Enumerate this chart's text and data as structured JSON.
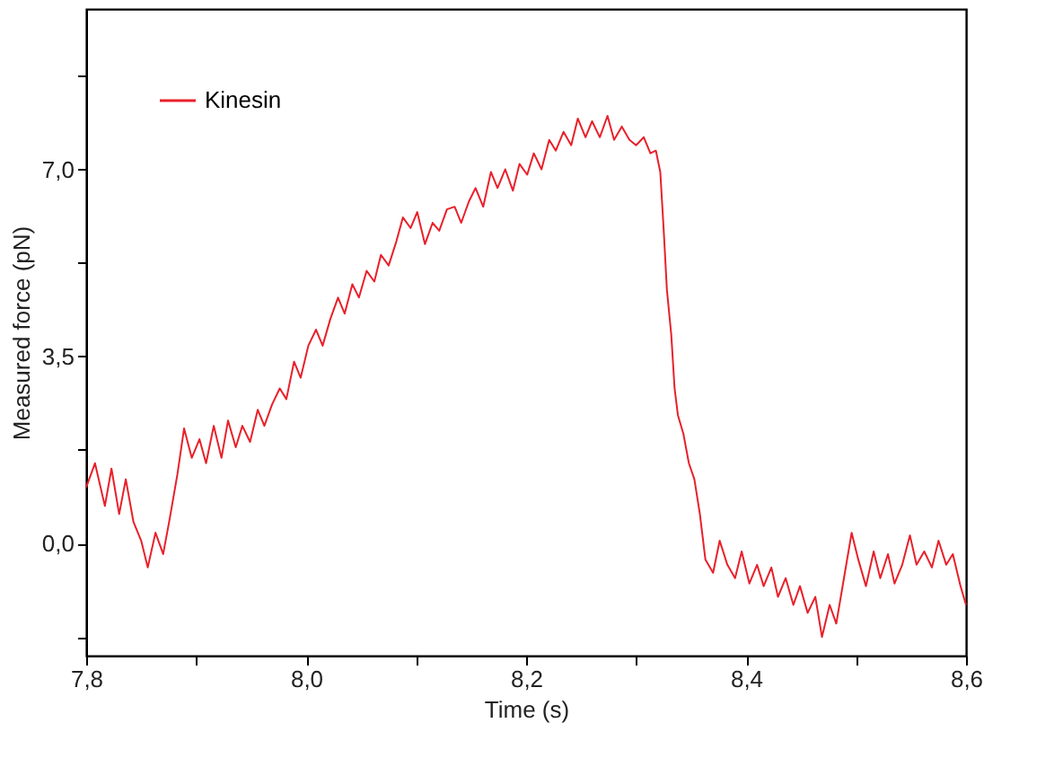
{
  "chart_data": {
    "type": "line",
    "xlabel": "Time (s)",
    "ylabel": "Measured force (pN)",
    "xlim": [
      7.8,
      8.6
    ],
    "ylim": [
      -2.1,
      10.0
    ],
    "xticks": [
      {
        "value": 7.8,
        "label": "7,8"
      },
      {
        "value": 7.9,
        "label": null
      },
      {
        "value": 8.0,
        "label": "8,0"
      },
      {
        "value": 8.1,
        "label": null
      },
      {
        "value": 8.2,
        "label": "8,2"
      },
      {
        "value": 8.3,
        "label": null
      },
      {
        "value": 8.4,
        "label": "8,4"
      },
      {
        "value": 8.5,
        "label": null
      },
      {
        "value": 8.6,
        "label": "8,6"
      }
    ],
    "yticks": [
      {
        "value": -1.75,
        "label": null
      },
      {
        "value": 0.0,
        "label": "0,0"
      },
      {
        "value": 1.75,
        "label": null
      },
      {
        "value": 3.5,
        "label": "3,5"
      },
      {
        "value": 5.25,
        "label": null
      },
      {
        "value": 7.0,
        "label": "7,0"
      },
      {
        "value": 8.75,
        "label": null
      }
    ],
    "grid": false,
    "legend": "top left",
    "marker": "none",
    "line_style": "solid",
    "series": [
      {
        "name": "Kinesin",
        "color": "#e8202a",
        "x": [
          7.8,
          7.808,
          7.817,
          7.823,
          7.83,
          7.836,
          7.843,
          7.85,
          7.856,
          7.863,
          7.87,
          7.876,
          7.883,
          7.889,
          7.896,
          7.903,
          7.909,
          7.916,
          7.923,
          7.929,
          7.936,
          7.942,
          7.949,
          7.956,
          7.962,
          7.969,
          7.976,
          7.982,
          7.989,
          7.995,
          8.002,
          8.009,
          8.015,
          8.022,
          8.029,
          8.035,
          8.042,
          8.048,
          8.055,
          8.062,
          8.068,
          8.075,
          8.082,
          8.088,
          8.095,
          8.101,
          8.108,
          8.115,
          8.121,
          8.128,
          8.135,
          8.141,
          8.148,
          8.154,
          8.161,
          8.168,
          8.174,
          8.181,
          8.188,
          8.194,
          8.201,
          8.207,
          8.214,
          8.221,
          8.227,
          8.234,
          8.241,
          8.247,
          8.254,
          8.26,
          8.267,
          8.274,
          8.28,
          8.287,
          8.294,
          8.3,
          8.307,
          8.313,
          8.318,
          8.322,
          8.325,
          8.328,
          8.332,
          8.335,
          8.338,
          8.343,
          8.348,
          8.353,
          8.358,
          8.363,
          8.37,
          8.376,
          8.383,
          8.39,
          8.396,
          8.403,
          8.41,
          8.416,
          8.423,
          8.429,
          8.436,
          8.443,
          8.449,
          8.456,
          8.463,
          8.469,
          8.476,
          8.482,
          8.489,
          8.496,
          8.502,
          8.509,
          8.516,
          8.522,
          8.529,
          8.535,
          8.542,
          8.549,
          8.555,
          8.562,
          8.569,
          8.575,
          8.582,
          8.588,
          8.595,
          8.6
        ],
        "values": [
          1.05,
          1.5,
          0.7,
          1.4,
          0.55,
          1.2,
          0.4,
          0.05,
          -0.45,
          0.2,
          -0.2,
          0.47,
          1.3,
          2.15,
          1.6,
          1.95,
          1.5,
          2.2,
          1.6,
          2.3,
          1.8,
          2.2,
          1.9,
          2.5,
          2.2,
          2.6,
          2.9,
          2.7,
          3.4,
          3.1,
          3.7,
          4.0,
          3.7,
          4.2,
          4.6,
          4.3,
          4.85,
          4.6,
          5.1,
          4.9,
          5.4,
          5.2,
          5.65,
          6.1,
          5.9,
          6.2,
          5.6,
          6.0,
          5.85,
          6.25,
          6.3,
          6.0,
          6.4,
          6.65,
          6.3,
          6.95,
          6.65,
          7.0,
          6.6,
          7.1,
          6.9,
          7.3,
          7.0,
          7.55,
          7.35,
          7.7,
          7.45,
          7.95,
          7.6,
          7.9,
          7.6,
          8.0,
          7.55,
          7.8,
          7.55,
          7.45,
          7.6,
          7.3,
          7.35,
          6.95,
          5.9,
          4.75,
          3.9,
          2.9,
          2.4,
          2.05,
          1.5,
          1.2,
          0.55,
          -0.3,
          -0.55,
          0.05,
          -0.4,
          -0.65,
          -0.15,
          -0.75,
          -0.4,
          -0.8,
          -0.45,
          -1.0,
          -0.65,
          -1.15,
          -0.8,
          -1.3,
          -1.0,
          -1.75,
          -1.15,
          -1.5,
          -0.65,
          0.2,
          -0.3,
          -0.8,
          -0.15,
          -0.65,
          -0.2,
          -0.75,
          -0.4,
          0.15,
          -0.4,
          -0.15,
          -0.45,
          0.05,
          -0.4,
          -0.2,
          -0.8,
          -1.15
        ]
      }
    ]
  }
}
